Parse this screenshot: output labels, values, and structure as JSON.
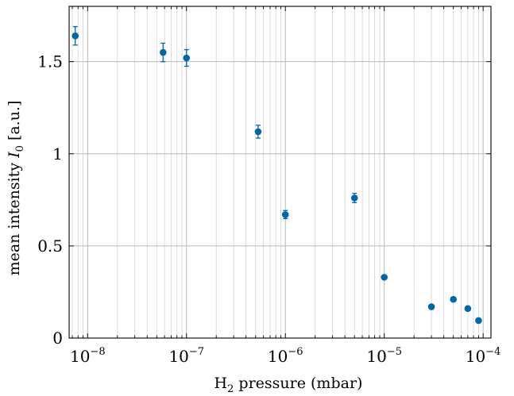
{
  "chart_data": {
    "type": "scatter",
    "xlabel": "H2 pressure (mbar)",
    "xlabel_parts": {
      "base": "H",
      "sub": "2",
      "rest": " pressure (mbar)"
    },
    "ylabel": "mean intensity I0 [a.u.]",
    "ylabel_parts": {
      "pre": "mean intensity ",
      "var": "I",
      "sub": "0",
      "post": " [a.u.]"
    },
    "x_scale": "log",
    "xlim": [
      6.5e-09,
      0.00012
    ],
    "ylim": [
      0,
      1.8
    ],
    "grid": true,
    "grid_minor_x": true,
    "x_ticks": [
      {
        "value": 1e-08,
        "base": "10",
        "exp": "−8"
      },
      {
        "value": 1e-07,
        "base": "10",
        "exp": "−7"
      },
      {
        "value": 1e-06,
        "base": "10",
        "exp": "−6"
      },
      {
        "value": 1e-05,
        "base": "10",
        "exp": "−5"
      },
      {
        "value": 0.0001,
        "base": "10",
        "exp": "−4"
      }
    ],
    "y_ticks": [
      {
        "value": 0,
        "label": "0"
      },
      {
        "value": 0.5,
        "label": "0.5"
      },
      {
        "value": 1,
        "label": "1"
      },
      {
        "value": 1.5,
        "label": "1.5"
      }
    ],
    "marker_color": "#0066a6",
    "series": [
      {
        "points": [
          {
            "x": 7.5e-09,
            "y": 1.64,
            "err": 0.05
          },
          {
            "x": 5.8e-08,
            "y": 1.55,
            "err": 0.05
          },
          {
            "x": 1e-07,
            "y": 1.52,
            "err": 0.045
          },
          {
            "x": 5.3e-07,
            "y": 1.12,
            "err": 0.035
          },
          {
            "x": 1e-06,
            "y": 0.67,
            "err": 0.022
          },
          {
            "x": 5e-06,
            "y": 0.76,
            "err": 0.025
          },
          {
            "x": 1e-05,
            "y": 0.33,
            "err": 0
          },
          {
            "x": 3e-05,
            "y": 0.17,
            "err": 0
          },
          {
            "x": 5e-05,
            "y": 0.21,
            "err": 0
          },
          {
            "x": 7e-05,
            "y": 0.16,
            "err": 0
          },
          {
            "x": 9e-05,
            "y": 0.095,
            "err": 0
          }
        ]
      }
    ]
  }
}
